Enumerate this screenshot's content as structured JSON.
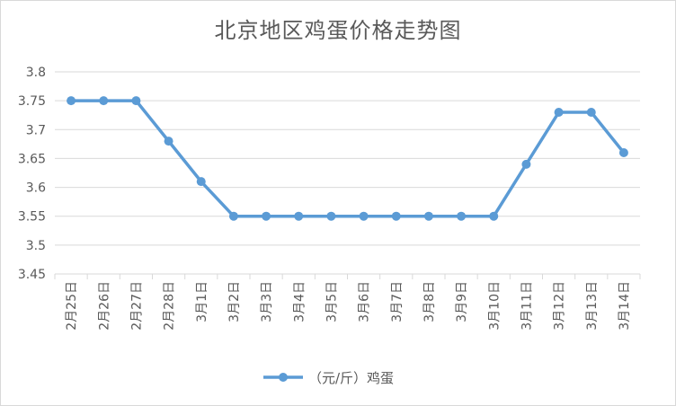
{
  "chart_data": {
    "type": "line",
    "title": "北京地区鸡蛋价格走势图",
    "xlabel": "",
    "ylabel": "",
    "categories": [
      "2月25日",
      "2月26日",
      "2月27日",
      "2月28日",
      "3月1日",
      "3月2日",
      "3月3日",
      "3月4日",
      "3月5日",
      "3月6日",
      "3月7日",
      "3月8日",
      "3月9日",
      "3月10日",
      "3月11日",
      "3月12日",
      "3月13日",
      "3月14日"
    ],
    "series": [
      {
        "name": "（元/斤）鸡蛋",
        "values": [
          3.75,
          3.75,
          3.75,
          3.68,
          3.61,
          3.55,
          3.55,
          3.55,
          3.55,
          3.55,
          3.55,
          3.55,
          3.55,
          3.55,
          3.64,
          3.73,
          3.73,
          3.66
        ]
      }
    ],
    "ylim": [
      3.45,
      3.8
    ],
    "yticks": [
      "3.8",
      "3.75",
      "3.7",
      "3.65",
      "3.6",
      "3.55",
      "3.5",
      "3.45"
    ],
    "grid": true,
    "legend": "bottom",
    "line_color": "#5b9bd5",
    "grid_color": "#d9d9d9"
  }
}
